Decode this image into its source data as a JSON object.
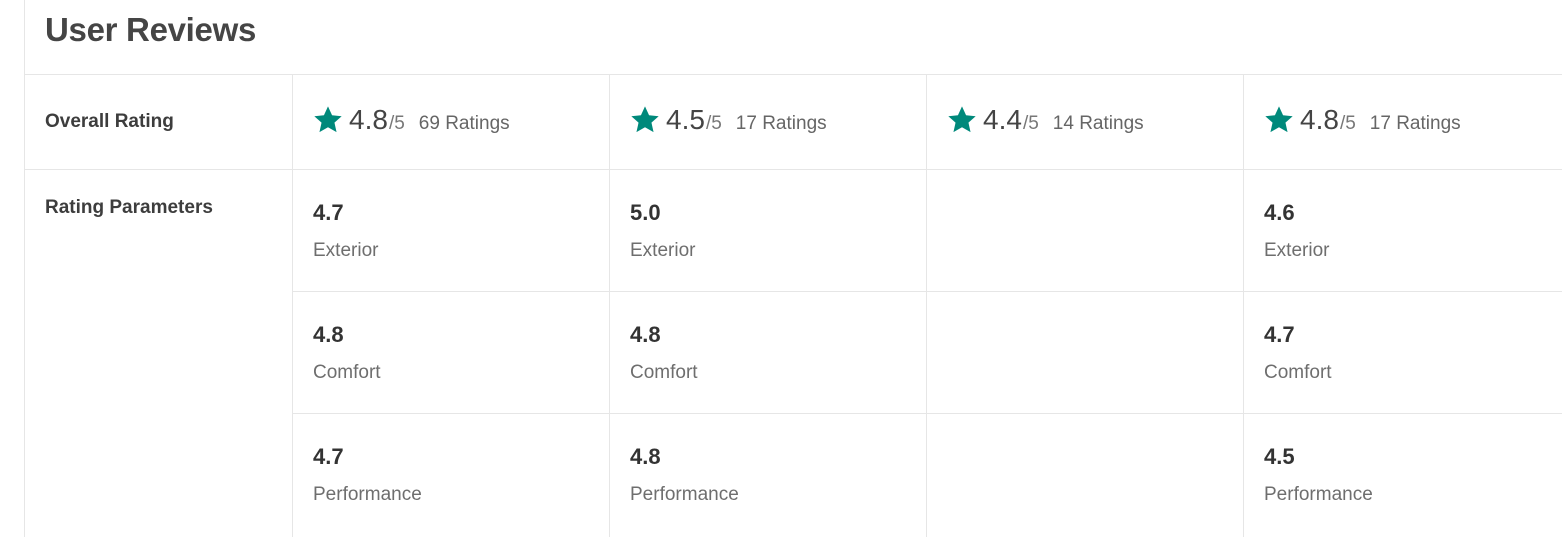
{
  "header": {
    "title": "User Reviews"
  },
  "colors": {
    "star": "#00897b"
  },
  "overall": {
    "label": "Overall Rating",
    "out_of": "/5",
    "items": [
      {
        "score": "4.8",
        "count": "69 Ratings",
        "icon": "star-icon"
      },
      {
        "score": "4.5",
        "count": "17 Ratings",
        "icon": "star-icon"
      },
      {
        "score": "4.4",
        "count": "14 Ratings",
        "icon": "star-icon"
      },
      {
        "score": "4.8",
        "count": "17 Ratings",
        "icon": "star-icon"
      }
    ]
  },
  "parameters": {
    "label": "Rating Parameters",
    "columns": [
      [
        {
          "value": "4.7",
          "name": "Exterior"
        },
        {
          "value": "4.8",
          "name": "Comfort"
        },
        {
          "value": "4.7",
          "name": "Performance"
        }
      ],
      [
        {
          "value": "5.0",
          "name": "Exterior"
        },
        {
          "value": "4.8",
          "name": "Comfort"
        },
        {
          "value": "4.8",
          "name": "Performance"
        }
      ],
      [],
      [
        {
          "value": "4.6",
          "name": "Exterior"
        },
        {
          "value": "4.7",
          "name": "Comfort"
        },
        {
          "value": "4.5",
          "name": "Performance"
        }
      ]
    ]
  }
}
